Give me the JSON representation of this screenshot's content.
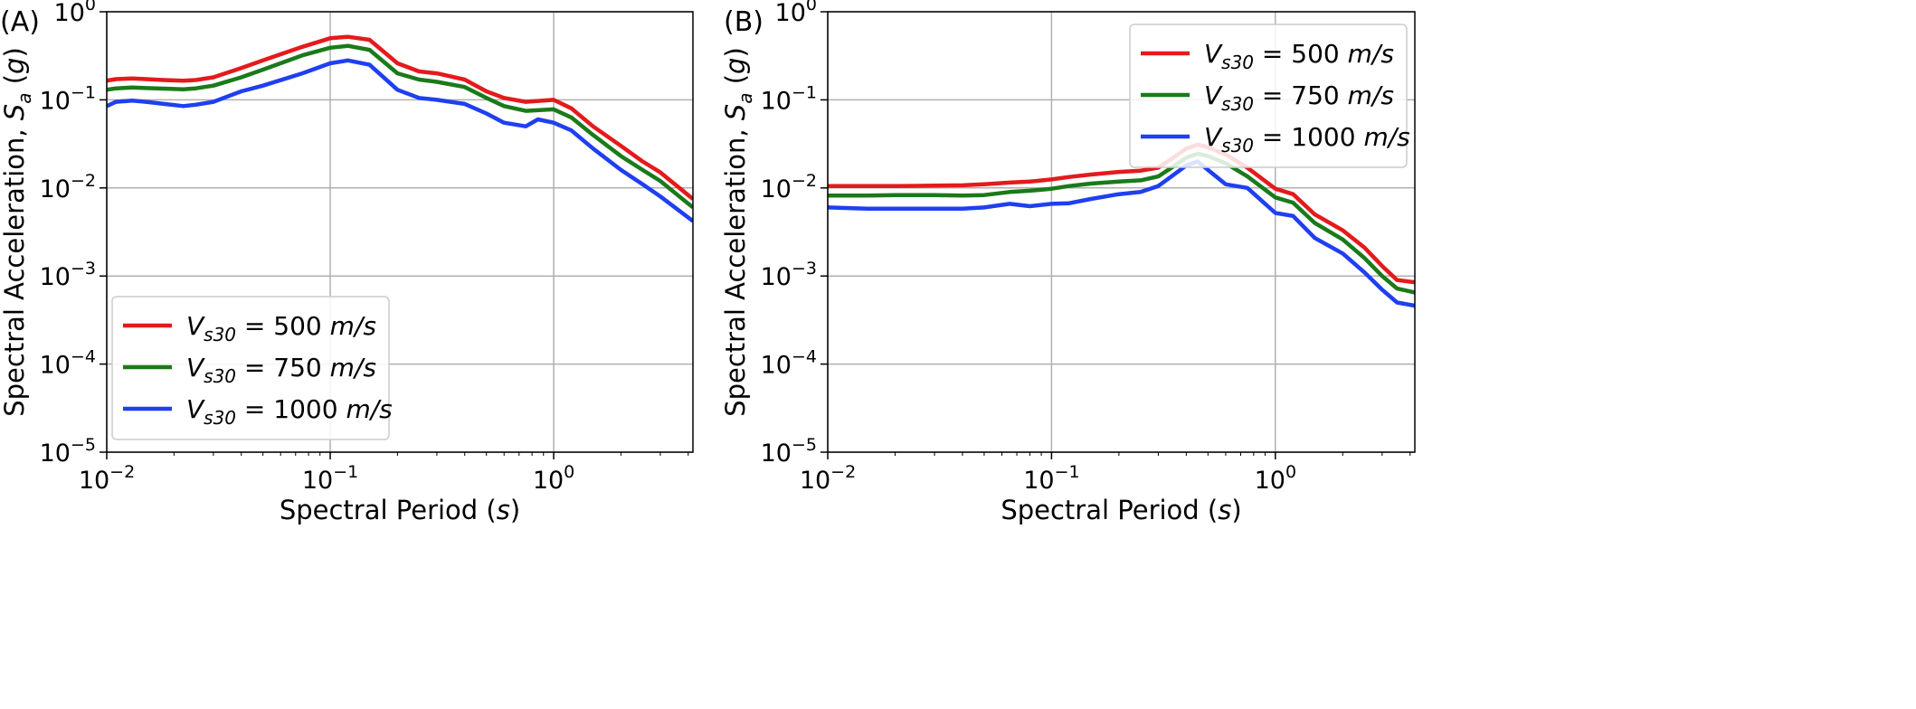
{
  "chart_data": [
    {
      "panel_label": "(A)",
      "type": "line",
      "xlabel": "Spectral Period (s)",
      "ylabel": "Spectral Acceleration, Sa (g)",
      "xscale": "log",
      "yscale": "log",
      "xlim": [
        0.01,
        4.2
      ],
      "ylim": [
        1e-05,
        1
      ],
      "xticks": [
        "10^-2",
        "10^-1",
        "10^0"
      ],
      "yticks": [
        "10^-5",
        "10^-4",
        "10^-3",
        "10^-2",
        "10^-1",
        "10^0"
      ],
      "grid": true,
      "legend_position": "lower-left",
      "series": [
        {
          "name": "Vs30 = 500 m/s",
          "color": "#e41a1c",
          "x": [
            0.01,
            0.011,
            0.013,
            0.015,
            0.018,
            0.022,
            0.025,
            0.03,
            0.04,
            0.05,
            0.075,
            0.1,
            0.12,
            0.15,
            0.2,
            0.25,
            0.3,
            0.4,
            0.5,
            0.6,
            0.75,
            1.0,
            1.2,
            1.5,
            2.0,
            2.5,
            3.0,
            4.2
          ],
          "y": [
            0.165,
            0.172,
            0.175,
            0.172,
            0.168,
            0.165,
            0.168,
            0.18,
            0.23,
            0.28,
            0.4,
            0.5,
            0.52,
            0.48,
            0.26,
            0.21,
            0.2,
            0.17,
            0.125,
            0.105,
            0.095,
            0.1,
            0.08,
            0.05,
            0.03,
            0.02,
            0.015,
            0.0075
          ]
        },
        {
          "name": "Vs30 = 750 m/s",
          "color": "#1a7a1a",
          "x": [
            0.01,
            0.011,
            0.013,
            0.015,
            0.018,
            0.022,
            0.025,
            0.03,
            0.04,
            0.05,
            0.075,
            0.1,
            0.12,
            0.15,
            0.2,
            0.25,
            0.3,
            0.4,
            0.5,
            0.6,
            0.75,
            1.0,
            1.2,
            1.5,
            2.0,
            2.5,
            3.0,
            4.2
          ],
          "y": [
            0.13,
            0.135,
            0.138,
            0.136,
            0.134,
            0.132,
            0.135,
            0.145,
            0.18,
            0.22,
            0.32,
            0.39,
            0.41,
            0.37,
            0.2,
            0.17,
            0.16,
            0.14,
            0.105,
            0.085,
            0.075,
            0.078,
            0.063,
            0.04,
            0.023,
            0.016,
            0.012,
            0.006
          ]
        },
        {
          "name": "Vs30 = 1000 m/s",
          "color": "#1f3ff0",
          "x": [
            0.01,
            0.011,
            0.013,
            0.015,
            0.018,
            0.022,
            0.025,
            0.03,
            0.04,
            0.05,
            0.075,
            0.1,
            0.12,
            0.15,
            0.2,
            0.25,
            0.3,
            0.4,
            0.5,
            0.6,
            0.75,
            0.85,
            1.0,
            1.2,
            1.5,
            2.0,
            2.5,
            3.0,
            4.2
          ],
          "y": [
            0.085,
            0.095,
            0.098,
            0.095,
            0.09,
            0.085,
            0.088,
            0.095,
            0.125,
            0.145,
            0.2,
            0.26,
            0.28,
            0.25,
            0.13,
            0.105,
            0.1,
            0.09,
            0.07,
            0.055,
            0.05,
            0.06,
            0.055,
            0.045,
            0.028,
            0.016,
            0.011,
            0.008,
            0.0042
          ]
        }
      ]
    },
    {
      "panel_label": "(B)",
      "type": "line",
      "xlabel": "Spectral Period (s)",
      "ylabel": "Spectral Acceleration, Sa (g)",
      "xscale": "log",
      "yscale": "log",
      "xlim": [
        0.01,
        4.2
      ],
      "ylim": [
        1e-05,
        1
      ],
      "xticks": [
        "10^-2",
        "10^-1",
        "10^0"
      ],
      "yticks": [
        "10^-5",
        "10^-4",
        "10^-3",
        "10^-2",
        "10^-1",
        "10^0"
      ],
      "grid": true,
      "legend_position": "upper-right",
      "series": [
        {
          "name": "Vs30 = 500 m/s",
          "color": "#e41a1c",
          "x": [
            0.01,
            0.015,
            0.02,
            0.03,
            0.04,
            0.05,
            0.065,
            0.08,
            0.1,
            0.12,
            0.15,
            0.2,
            0.25,
            0.3,
            0.35,
            0.4,
            0.45,
            0.5,
            0.6,
            0.75,
            1.0,
            1.2,
            1.5,
            2.0,
            2.5,
            3.0,
            3.5,
            4.2
          ],
          "y": [
            0.0105,
            0.0105,
            0.0105,
            0.0106,
            0.0107,
            0.011,
            0.0115,
            0.0118,
            0.0125,
            0.0133,
            0.0142,
            0.0152,
            0.0157,
            0.017,
            0.022,
            0.028,
            0.031,
            0.029,
            0.024,
            0.017,
            0.0098,
            0.0085,
            0.005,
            0.0033,
            0.0021,
            0.0013,
            0.0009,
            0.00085
          ]
        },
        {
          "name": "Vs30 = 750 m/s",
          "color": "#1a7a1a",
          "x": [
            0.01,
            0.015,
            0.02,
            0.03,
            0.04,
            0.05,
            0.065,
            0.08,
            0.1,
            0.12,
            0.15,
            0.2,
            0.25,
            0.3,
            0.35,
            0.4,
            0.45,
            0.5,
            0.6,
            0.75,
            1.0,
            1.2,
            1.5,
            2.0,
            2.5,
            3.0,
            3.5,
            4.2
          ],
          "y": [
            0.0082,
            0.0082,
            0.0083,
            0.0083,
            0.0082,
            0.0083,
            0.009,
            0.0093,
            0.0098,
            0.0105,
            0.0112,
            0.0118,
            0.0122,
            0.0135,
            0.0175,
            0.022,
            0.0245,
            0.023,
            0.019,
            0.0135,
            0.0078,
            0.0068,
            0.004,
            0.0026,
            0.0016,
            0.001,
            0.00072,
            0.00065
          ]
        },
        {
          "name": "Vs30 = 1000 m/s",
          "color": "#1f3ff0",
          "x": [
            0.01,
            0.015,
            0.02,
            0.03,
            0.04,
            0.05,
            0.065,
            0.08,
            0.1,
            0.12,
            0.15,
            0.2,
            0.25,
            0.3,
            0.35,
            0.4,
            0.45,
            0.5,
            0.6,
            0.75,
            1.0,
            1.2,
            1.5,
            2.0,
            2.5,
            3.0,
            3.5,
            4.2
          ],
          "y": [
            0.006,
            0.0058,
            0.0058,
            0.0058,
            0.0058,
            0.006,
            0.0066,
            0.0062,
            0.0066,
            0.0067,
            0.0075,
            0.0085,
            0.009,
            0.0105,
            0.014,
            0.018,
            0.02,
            0.016,
            0.011,
            0.01,
            0.0052,
            0.0048,
            0.0027,
            0.0018,
            0.0011,
            0.0007,
            0.0005,
            0.00046
          ]
        }
      ]
    }
  ]
}
